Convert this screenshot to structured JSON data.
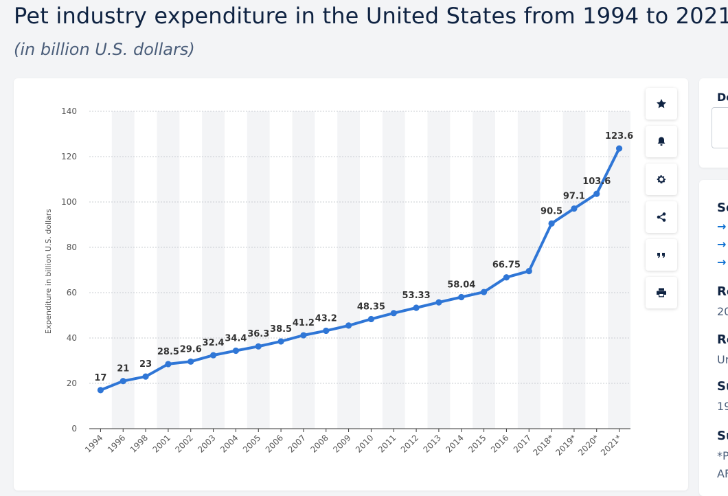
{
  "page": {
    "title": "Pet industry expenditure in the United States from 1994 to 2021",
    "subtitle": "(in billion U.S. dollars)"
  },
  "toolbar": [
    {
      "name": "star-icon",
      "kind": "star"
    },
    {
      "name": "bell-icon",
      "kind": "bell"
    },
    {
      "name": "gear-icon",
      "kind": "gear"
    },
    {
      "name": "share-icon",
      "kind": "share"
    },
    {
      "name": "quote-icon",
      "kind": "quote"
    },
    {
      "name": "print-icon",
      "kind": "print"
    }
  ],
  "sidebar": {
    "download_label": "Do",
    "source_label": "So",
    "release_date_label": "Re",
    "release_date_value": "20",
    "region_label": "Re",
    "region_value": "Ur",
    "survey_period_label": "Su",
    "survey_period_value": "19",
    "supplementary_label": "Su",
    "supplementary_value_1": "*P",
    "supplementary_value_2": "AF"
  },
  "chart_data": {
    "type": "line",
    "title": "",
    "xlabel": "",
    "ylabel": "Expenditure in billion U.S. dollars",
    "ylim": [
      0,
      140
    ],
    "yticks": [
      0,
      20,
      40,
      60,
      80,
      100,
      120,
      140
    ],
    "grid": true,
    "categories": [
      "1994",
      "1996",
      "1998",
      "2001",
      "2002",
      "2003",
      "2004",
      "2005",
      "2006",
      "2007",
      "2008",
      "2009",
      "2010",
      "2011",
      "2012",
      "2013",
      "2014",
      "2015",
      "2016",
      "2017",
      "2018*",
      "2019*",
      "2020*",
      "2021*"
    ],
    "series": [
      {
        "values": [
          17,
          21,
          23,
          28.5,
          29.6,
          32.4,
          34.4,
          36.3,
          38.5,
          41.2,
          43.2,
          45.5,
          48.35,
          50.96,
          53.33,
          55.72,
          58.04,
          60.28,
          66.75,
          69.51,
          90.5,
          97.1,
          103.6,
          123.6
        ],
        "labels": [
          "17",
          "21",
          "23",
          "28.5",
          "29.6",
          "32.4",
          "34.4",
          "36.3",
          "38.5",
          "41.2",
          "43.2",
          "",
          "48.35",
          "",
          "53.33",
          "",
          "58.04",
          "",
          "66.75",
          "",
          "90.5",
          "97.1",
          "103.6",
          "123.6"
        ]
      }
    ],
    "colors": {
      "line": "#2f76d6",
      "band": "#f3f4f6",
      "grid": "#c8ccd2",
      "text": "#333333",
      "axis": "#555555"
    }
  }
}
